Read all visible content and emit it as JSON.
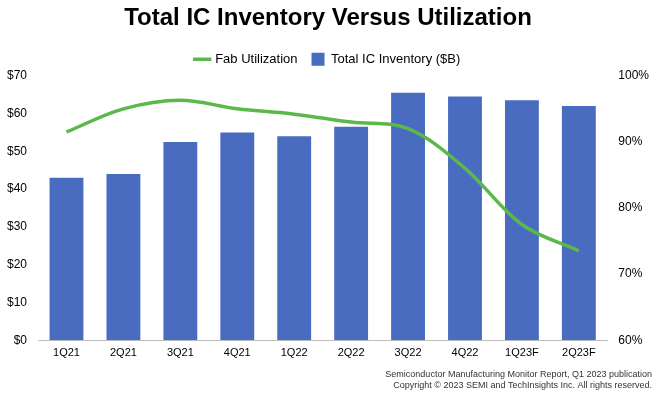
{
  "chart_data": {
    "type": "bar",
    "title": "Total IC Inventory Versus Utilization",
    "categories": [
      "1Q21",
      "2Q21",
      "3Q21",
      "4Q21",
      "1Q22",
      "2Q22",
      "3Q22",
      "4Q22",
      "1Q23F",
      "2Q23F"
    ],
    "series": [
      {
        "name": "Total IC Inventory ($B)",
        "type": "bar",
        "color": "#4a6cc0",
        "values": [
          43,
          44,
          52.5,
          55,
          54,
          56.5,
          65.5,
          64.5,
          63.5,
          62
        ]
      },
      {
        "name": "Fab Utilization",
        "type": "line",
        "axis": "y2",
        "color": "#5cb84a",
        "marker": "none",
        "values": [
          91.5,
          95,
          96.3,
          95,
          94.2,
          93,
          92,
          86,
          77.5,
          73.5
        ]
      }
    ],
    "ylim": [
      0,
      70
    ],
    "yticks": [
      {
        "value": 0,
        "label": "$0"
      },
      {
        "value": 10,
        "label": "$10"
      },
      {
        "value": 20,
        "label": "$20"
      },
      {
        "value": 30,
        "label": "$30"
      },
      {
        "value": 40,
        "label": "$40"
      },
      {
        "value": 50,
        "label": "$50"
      },
      {
        "value": 60,
        "label": "$60"
      },
      {
        "value": 70,
        "label": "$70"
      }
    ],
    "y2lim": [
      60,
      100
    ],
    "y2ticks": [
      {
        "value": 60,
        "label": "60%"
      },
      {
        "value": 70,
        "label": "70%"
      },
      {
        "value": 80,
        "label": "80%"
      },
      {
        "value": 90,
        "label": "90%"
      },
      {
        "value": 100,
        "label": "100%"
      }
    ],
    "grid": false,
    "legend": "top",
    "annotations": [
      "Semiconductor Manufacturing Monitor Report, Q1 2023 publication",
      "Copyright © 2023 SEMI and TechInsights Inc. All rights reserved."
    ]
  }
}
